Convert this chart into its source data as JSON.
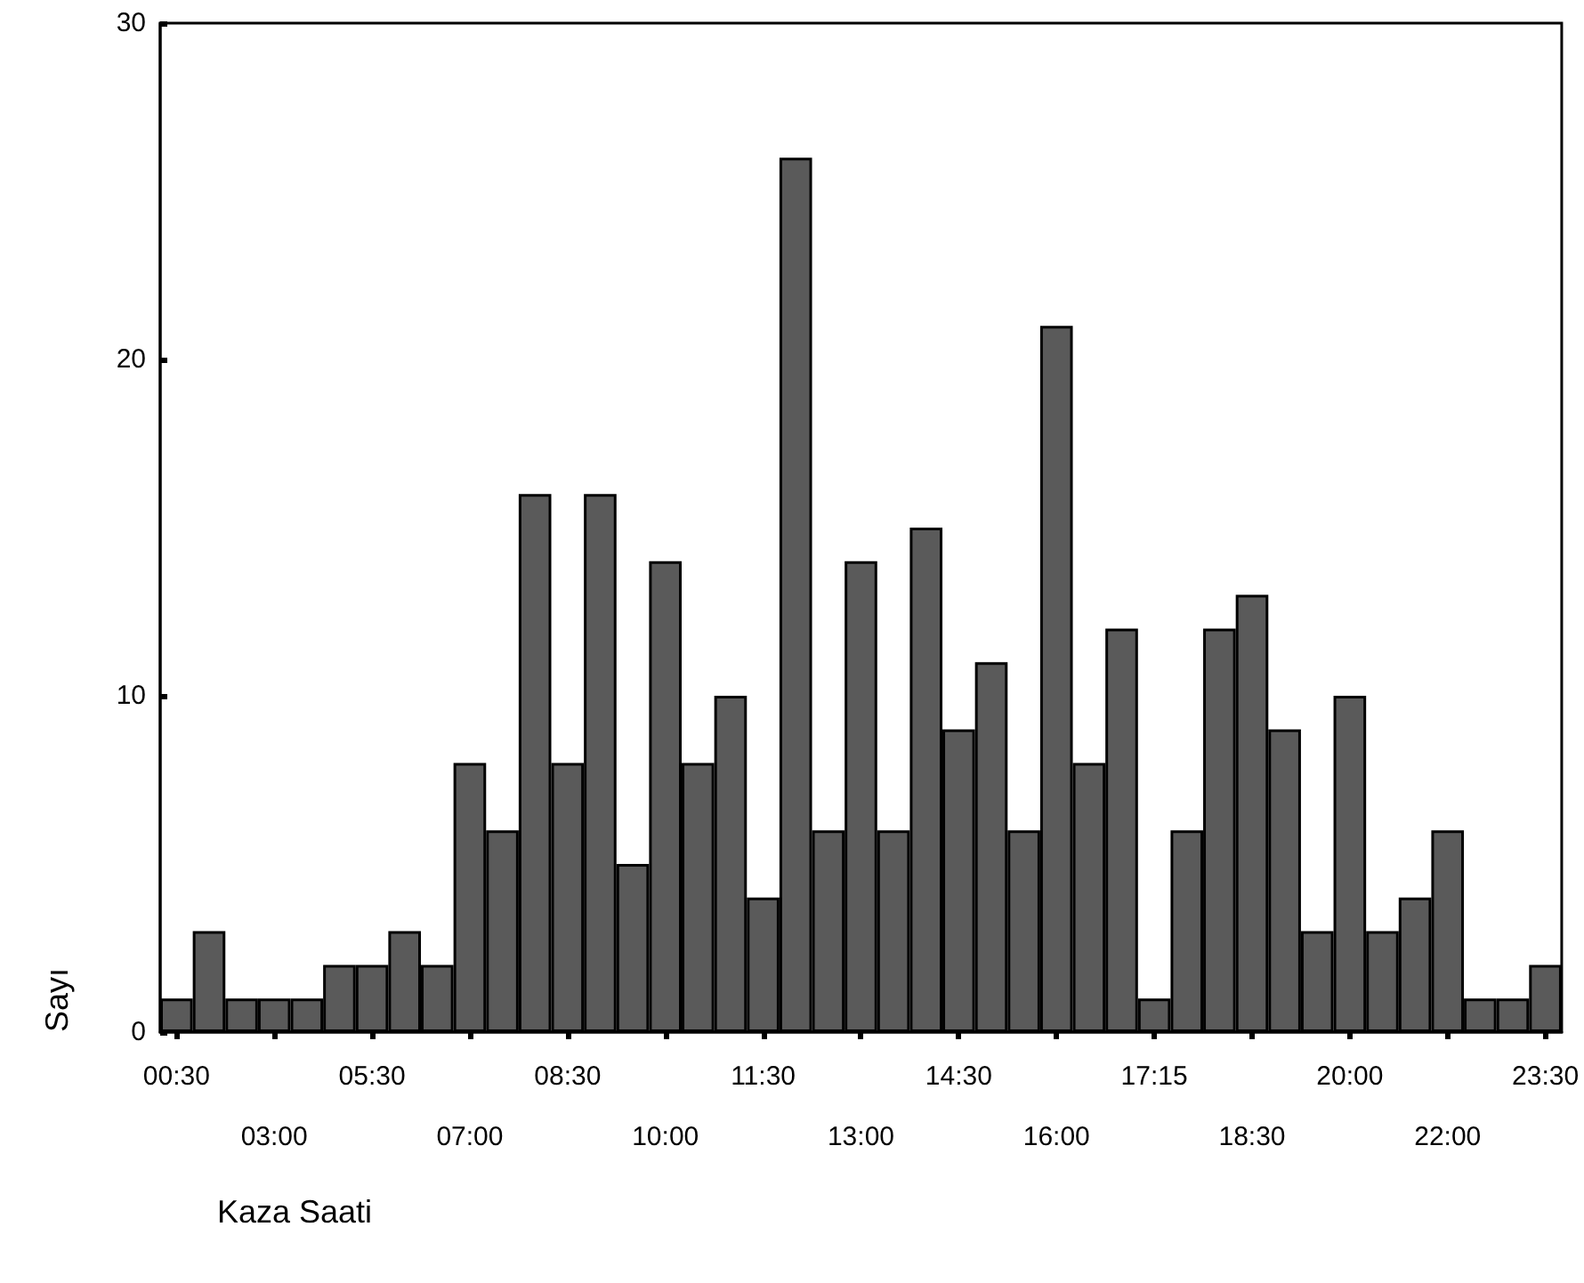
{
  "chart_data": {
    "type": "bar",
    "xlabel": "Kaza Saati",
    "ylabel": "Sayı",
    "categories": [
      "00:30",
      null,
      null,
      "03:00",
      null,
      null,
      "05:30",
      null,
      null,
      "07:00",
      null,
      null,
      "08:30",
      null,
      null,
      "10:00",
      null,
      null,
      "11:30",
      null,
      null,
      "13:00",
      null,
      null,
      "14:30",
      null,
      null,
      "16:00",
      null,
      null,
      "17:15",
      null,
      null,
      "18:30",
      null,
      null,
      "20:00",
      null,
      null,
      "22:00",
      null,
      null,
      "23:30"
    ],
    "values": [
      1,
      3,
      1,
      1,
      1,
      2,
      2,
      3,
      2,
      8,
      6,
      16,
      8,
      16,
      5,
      14,
      8,
      10,
      4,
      26,
      6,
      14,
      6,
      15,
      9,
      11,
      6,
      21,
      8,
      12,
      1,
      6,
      12,
      13,
      9,
      3,
      10,
      3,
      4,
      6,
      1,
      1,
      2
    ],
    "color": "#5a5a5a",
    "ylim": [
      0,
      30
    ],
    "yticks": [
      0,
      10,
      20,
      30
    ]
  }
}
